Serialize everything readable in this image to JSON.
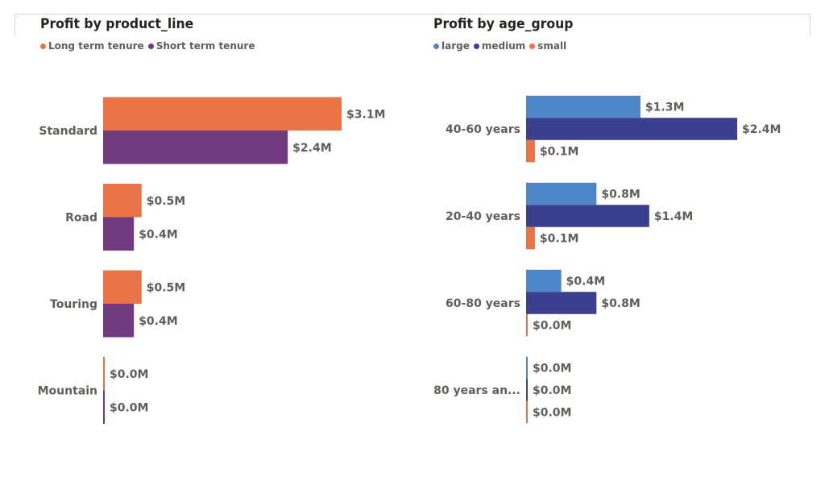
{
  "chart_data": [
    {
      "type": "bar",
      "orientation": "horizontal",
      "title": "Profit by product_line",
      "categories": [
        "Standard",
        "Road",
        "Touring",
        "Mountain"
      ],
      "series": [
        {
          "name": "Long term tenure",
          "values": [
            3.1,
            0.5,
            0.5,
            0.0
          ],
          "labels": [
            "$3.1M",
            "$0.5M",
            "$0.5M",
            "$0.0M"
          ]
        },
        {
          "name": "Short term tenure",
          "values": [
            2.4,
            0.4,
            0.4,
            0.0
          ],
          "labels": [
            "$2.4M",
            "$0.4M",
            "$0.4M",
            "$0.0M"
          ]
        }
      ],
      "colors": [
        "#e97344",
        "#6f3a80"
      ],
      "legend": "top-left",
      "grid": false
    },
    {
      "type": "bar",
      "orientation": "horizontal",
      "title": "Profit by age_group",
      "categories": [
        "40-60 years",
        "20-40 years",
        "60-80 years",
        "80 years an..."
      ],
      "series": [
        {
          "name": "large",
          "values": [
            1.3,
            0.8,
            0.4,
            0.0
          ],
          "labels": [
            "$1.3M",
            "$0.8M",
            "$0.4M",
            "$0.0M"
          ]
        },
        {
          "name": "medium",
          "values": [
            2.4,
            1.4,
            0.8,
            0.0
          ],
          "labels": [
            "$2.4M",
            "$1.4M",
            "$0.8M",
            "$0.0M"
          ]
        },
        {
          "name": "small",
          "values": [
            0.1,
            0.1,
            0.0,
            0.0
          ],
          "labels": [
            "$0.1M",
            "$0.1M",
            "$0.0M",
            "$0.0M"
          ]
        }
      ],
      "colors": [
        "#4f86c9",
        "#3a3f90",
        "#e97344"
      ],
      "legend": "top-left",
      "grid": false
    }
  ]
}
